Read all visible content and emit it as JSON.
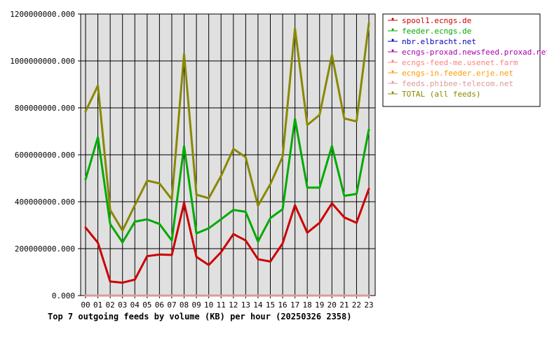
{
  "chart_data": {
    "type": "line",
    "title": "Top 7 outgoing feeds by volume (KB) per hour (20250326 2358)",
    "xlabel": "",
    "ylabel": "",
    "ylim": [
      0,
      1200000000
    ],
    "yticks": [
      "0.000",
      "200000000.000",
      "400000000.000",
      "600000000.000",
      "800000000.000",
      "1000000000.000",
      "1200000000.000"
    ],
    "ytick_values": [
      0,
      200000000,
      400000000,
      600000000,
      800000000,
      1000000000,
      1200000000
    ],
    "categories": [
      "00",
      "01",
      "02",
      "03",
      "04",
      "05",
      "06",
      "07",
      "08",
      "09",
      "10",
      "11",
      "12",
      "13",
      "14",
      "15",
      "16",
      "17",
      "18",
      "19",
      "20",
      "21",
      "22",
      "23"
    ],
    "grid": true,
    "legend_position": "right",
    "plot_background": "#e0e0e0",
    "series": [
      {
        "name": "spool1.ecngs.de",
        "color": "#cc0000",
        "values": [
          290000000,
          225000000,
          60000000,
          55000000,
          68000000,
          168000000,
          175000000,
          173000000,
          395000000,
          165000000,
          130000000,
          185000000,
          262000000,
          235000000,
          155000000,
          145000000,
          222000000,
          385000000,
          268000000,
          310000000,
          393000000,
          333000000,
          310000000,
          455000000
        ]
      },
      {
        "name": "feeder.ecngs.de",
        "color": "#00aa00",
        "values": [
          495000000,
          675000000,
          305000000,
          227000000,
          315000000,
          325000000,
          305000000,
          235000000,
          637000000,
          265000000,
          287000000,
          325000000,
          365000000,
          357000000,
          230000000,
          330000000,
          368000000,
          753000000,
          460000000,
          460000000,
          637000000,
          425000000,
          433000000,
          708000000
        ]
      },
      {
        "name": "nbr.elbracht.net",
        "color": "#0000bb",
        "values": [
          0,
          0,
          0,
          0,
          0,
          0,
          0,
          0,
          0,
          0,
          0,
          0,
          0,
          0,
          0,
          0,
          0,
          0,
          0,
          0,
          0,
          0,
          0,
          0
        ]
      },
      {
        "name": "ecngs-proxad.newsfeed.proxad.net",
        "color": "#aa00aa",
        "values": [
          0,
          0,
          0,
          0,
          0,
          0,
          0,
          0,
          0,
          0,
          0,
          0,
          0,
          0,
          0,
          0,
          0,
          0,
          0,
          0,
          0,
          0,
          0,
          0
        ]
      },
      {
        "name": "ecngs-feed-me.usenet.farm",
        "color": "#ff8080",
        "values": [
          0,
          0,
          0,
          0,
          0,
          0,
          0,
          0,
          0,
          0,
          0,
          0,
          0,
          0,
          0,
          0,
          0,
          0,
          0,
          0,
          0,
          0,
          0,
          0
        ]
      },
      {
        "name": "ecngs-in.feeder.erje.net",
        "color": "#ff9900",
        "values": [
          0,
          0,
          0,
          0,
          0,
          0,
          0,
          0,
          0,
          0,
          0,
          0,
          0,
          0,
          0,
          0,
          0,
          0,
          0,
          0,
          0,
          0,
          0,
          0
        ]
      },
      {
        "name": "feeds.phibee-telecom.net",
        "color": "#dd9999",
        "values": [
          0,
          0,
          0,
          0,
          0,
          0,
          0,
          0,
          0,
          0,
          0,
          0,
          0,
          0,
          0,
          0,
          0,
          0,
          0,
          0,
          0,
          0,
          0,
          0
        ]
      },
      {
        "name": "TOTAL (all feeds)",
        "color": "#888800",
        "values": [
          785000000,
          895000000,
          365000000,
          277000000,
          385000000,
          490000000,
          478000000,
          410000000,
          1030000000,
          430000000,
          415000000,
          510000000,
          625000000,
          590000000,
          383000000,
          475000000,
          592000000,
          1138000000,
          727000000,
          770000000,
          1025000000,
          755000000,
          742000000,
          1160000000
        ]
      }
    ]
  }
}
